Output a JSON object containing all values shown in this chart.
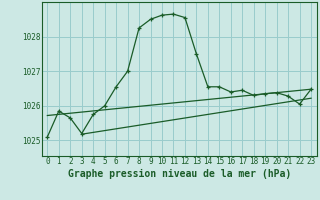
{
  "bg_color": "#cce8e4",
  "grid_color": "#99cccc",
  "line_color": "#1a5c28",
  "title": "Graphe pression niveau de la mer (hPa)",
  "xlim": [
    -0.5,
    23.5
  ],
  "ylim": [
    1024.55,
    1029.0
  ],
  "yticks": [
    1025,
    1026,
    1027,
    1028
  ],
  "xticks": [
    0,
    1,
    2,
    3,
    4,
    5,
    6,
    7,
    8,
    9,
    10,
    11,
    12,
    13,
    14,
    15,
    16,
    17,
    18,
    19,
    20,
    21,
    22,
    23
  ],
  "main_line": {
    "x": [
      0,
      1,
      2,
      3,
      4,
      5,
      6,
      7,
      8,
      9,
      10,
      11,
      12,
      13,
      14,
      15,
      16,
      17,
      18,
      19,
      20,
      21,
      22,
      23
    ],
    "y": [
      1025.1,
      1025.85,
      1025.65,
      1025.2,
      1025.75,
      1026.0,
      1026.55,
      1027.0,
      1028.25,
      1028.5,
      1028.62,
      1028.65,
      1028.55,
      1027.5,
      1026.55,
      1026.55,
      1026.4,
      1026.45,
      1026.3,
      1026.35,
      1026.38,
      1026.28,
      1026.05,
      1026.48
    ]
  },
  "trend_line1": {
    "x": [
      0,
      23
    ],
    "y": [
      1025.72,
      1026.48
    ]
  },
  "trend_line2": {
    "x": [
      3,
      23
    ],
    "y": [
      1025.18,
      1026.22
    ]
  },
  "title_fontsize": 7,
  "tick_fontsize": 5.5
}
